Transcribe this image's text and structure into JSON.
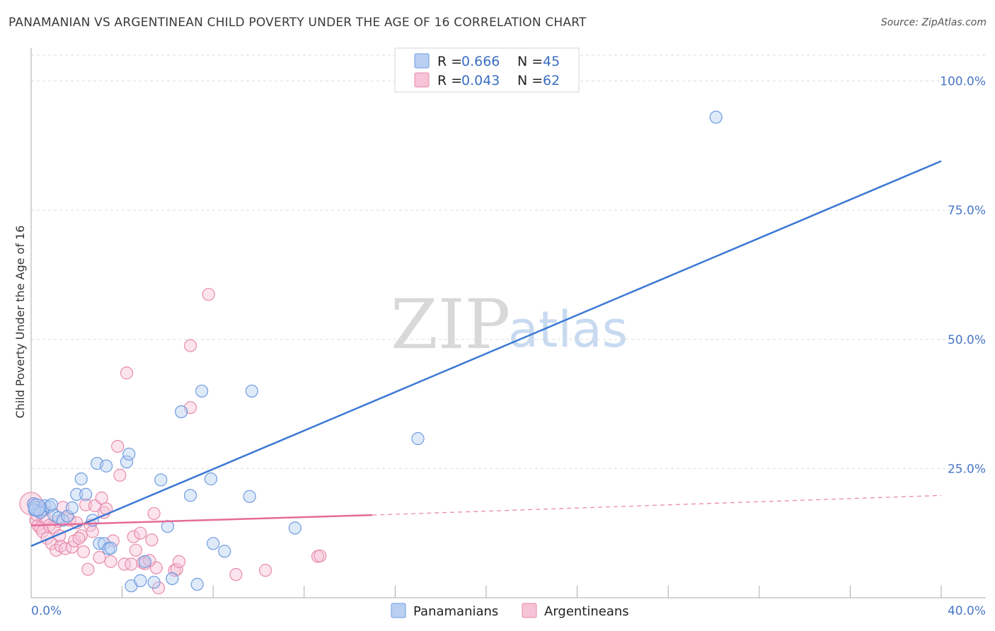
{
  "title": "PANAMANIAN VS ARGENTINEAN CHILD POVERTY UNDER THE AGE OF 16 CORRELATION CHART",
  "source": "Source: ZipAtlas.com",
  "watermark": {
    "zip": "ZIP",
    "atlas": "atlas"
  },
  "legend_top": {
    "r_label": "R =",
    "n_label": "N =",
    "rows": [
      {
        "r": "0.666",
        "n": "45"
      },
      {
        "r": "0.043",
        "n": "62"
      }
    ]
  },
  "legend_bottom": [
    "Panamanians",
    "Argentineans"
  ],
  "colors": {
    "blue_fill": "#b9d0f2",
    "blue_stroke": "#6f9be0",
    "blue_line": "#3a78d4",
    "pink_fill": "#f7c3d6",
    "pink_stroke": "#e88bab",
    "pink_line": "#e56b98",
    "tick": "#4a78c8",
    "grid": "#dddddd"
  },
  "chart_data": {
    "type": "scatter",
    "title": "PANAMANIAN VS ARGENTINEAN CHILD POVERTY UNDER THE AGE OF 16 CORRELATION CHART",
    "xlabel": "",
    "ylabel": "Child Poverty Under the Age of 16",
    "xlim": [
      0,
      40
    ],
    "ylim": [
      0,
      105
    ],
    "x_tick_labels": [
      "0.0%",
      "40.0%"
    ],
    "y_ticks": [
      25,
      50,
      75,
      100
    ],
    "y_tick_labels": [
      "25.0%",
      "50.0%",
      "75.0%",
      "100.0%"
    ],
    "grid": "horizontal dashed",
    "legend": "top-center",
    "series": [
      {
        "name": "Panamanians",
        "r": 0.666,
        "n": 45,
        "trend": {
          "x": [
            0,
            40
          ],
          "y": [
            10.0,
            84.5
          ]
        },
        "points": [
          [
            0.1,
            18.2
          ],
          [
            0.2,
            17.5
          ],
          [
            0.3,
            16.8
          ],
          [
            0.5,
            17.0
          ],
          [
            0.6,
            17.8
          ],
          [
            0.8,
            17.6
          ],
          [
            1.0,
            16.0
          ],
          [
            1.2,
            15.5
          ],
          [
            1.4,
            15.0
          ],
          [
            1.6,
            15.8
          ],
          [
            1.8,
            17.4
          ],
          [
            2.0,
            20.0
          ],
          [
            2.2,
            23.0
          ],
          [
            2.4,
            20.0
          ],
          [
            2.7,
            15.0
          ],
          [
            2.9,
            26.0
          ],
          [
            3.0,
            10.5
          ],
          [
            3.2,
            10.5
          ],
          [
            3.3,
            25.5
          ],
          [
            3.4,
            9.5
          ],
          [
            3.5,
            9.6
          ],
          [
            4.2,
            26.3
          ],
          [
            4.3,
            27.8
          ],
          [
            4.4,
            2.3
          ],
          [
            4.8,
            3.3
          ],
          [
            5.0,
            7.0
          ],
          [
            5.4,
            3.0
          ],
          [
            5.7,
            22.8
          ],
          [
            6.0,
            13.8
          ],
          [
            6.2,
            3.7
          ],
          [
            6.6,
            36.0
          ],
          [
            7.0,
            19.8
          ],
          [
            7.3,
            2.6
          ],
          [
            7.5,
            40.0
          ],
          [
            7.9,
            23.0
          ],
          [
            8.0,
            10.5
          ],
          [
            8.5,
            9.0
          ],
          [
            9.7,
            40.0
          ],
          [
            9.6,
            19.6
          ],
          [
            11.6,
            13.5
          ],
          [
            17.0,
            30.8
          ],
          [
            30.1,
            93.0
          ],
          [
            0.15,
            17.0
          ],
          [
            0.4,
            16.5
          ],
          [
            0.9,
            18.0
          ]
        ]
      },
      {
        "name": "Argentineans",
        "r": 0.043,
        "n": 62,
        "trend": {
          "x": [
            0,
            15
          ],
          "y": [
            14.0,
            16.0
          ]
        },
        "trend_dashed": {
          "x": [
            15,
            40
          ],
          "y": [
            16.0,
            19.8
          ]
        },
        "points": [
          [
            0.1,
            18.0
          ],
          [
            0.2,
            15.0
          ],
          [
            0.3,
            14.0
          ],
          [
            0.4,
            13.5
          ],
          [
            0.5,
            12.8
          ],
          [
            0.6,
            15.5
          ],
          [
            0.7,
            11.5
          ],
          [
            0.8,
            14.0
          ],
          [
            0.9,
            10.5
          ],
          [
            1.0,
            13.6
          ],
          [
            1.1,
            9.2
          ],
          [
            1.2,
            14.8
          ],
          [
            1.3,
            10.0
          ],
          [
            1.4,
            17.5
          ],
          [
            1.5,
            9.5
          ],
          [
            1.6,
            15.7
          ],
          [
            1.7,
            15.0
          ],
          [
            1.8,
            9.8
          ],
          [
            1.9,
            11.0
          ],
          [
            2.0,
            14.5
          ],
          [
            2.2,
            12.0
          ],
          [
            2.3,
            8.9
          ],
          [
            2.4,
            18.0
          ],
          [
            2.5,
            5.5
          ],
          [
            2.6,
            14.0
          ],
          [
            2.7,
            12.8
          ],
          [
            2.8,
            17.8
          ],
          [
            3.0,
            7.8
          ],
          [
            3.1,
            19.3
          ],
          [
            3.2,
            16.5
          ],
          [
            3.5,
            7.0
          ],
          [
            3.6,
            11.0
          ],
          [
            3.8,
            29.3
          ],
          [
            3.9,
            23.7
          ],
          [
            4.1,
            6.5
          ],
          [
            4.2,
            43.5
          ],
          [
            4.4,
            6.5
          ],
          [
            4.5,
            11.8
          ],
          [
            4.6,
            9.2
          ],
          [
            4.8,
            12.5
          ],
          [
            4.9,
            6.8
          ],
          [
            5.0,
            6.6
          ],
          [
            5.3,
            11.2
          ],
          [
            5.4,
            16.3
          ],
          [
            5.5,
            5.8
          ],
          [
            5.6,
            1.9
          ],
          [
            6.3,
            5.3
          ],
          [
            6.4,
            5.5
          ],
          [
            6.5,
            7.0
          ],
          [
            7.0,
            36.8
          ],
          [
            7.0,
            48.8
          ],
          [
            7.8,
            58.7
          ],
          [
            9.0,
            4.5
          ],
          [
            10.3,
            5.3
          ],
          [
            12.6,
            8.0
          ],
          [
            12.7,
            8.1
          ],
          [
            0.25,
            16.0
          ],
          [
            0.55,
            17.0
          ],
          [
            1.25,
            12.0
          ],
          [
            2.1,
            11.5
          ],
          [
            3.3,
            17.2
          ],
          [
            5.2,
            7.2
          ]
        ]
      }
    ]
  }
}
